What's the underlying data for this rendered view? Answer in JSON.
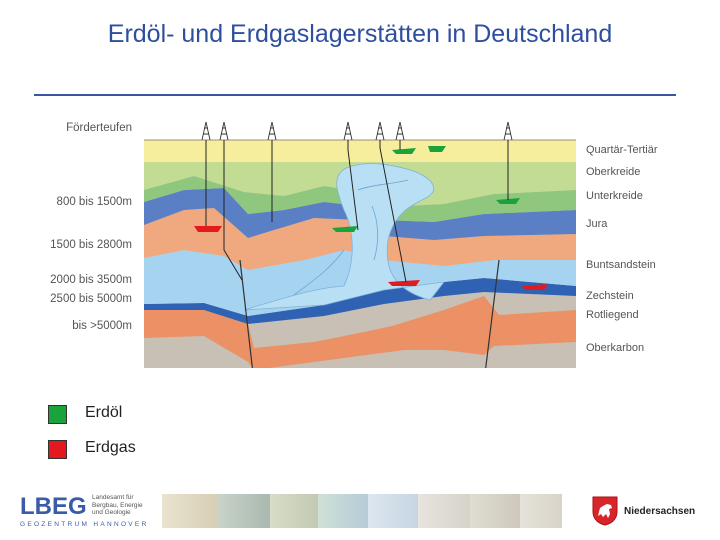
{
  "title": "Erdöl- und Erdgaslagerstätten in Deutschland",
  "diagram": {
    "depth_header": "Förderteufen",
    "depth_labels": [
      "800 bis 1500m",
      "1500 bis 2800m",
      "2000 bis 3500m",
      "2500 bis 5000m",
      "bis >5000m"
    ],
    "layer_labels": [
      "Quartär-Tertiär",
      "Oberkreide",
      "Unterkreide",
      "Jura",
      "Buntsandstein",
      "Zechstein",
      "Rotliegend",
      "Oberkarbon"
    ]
  },
  "legend": [
    {
      "label": "Erdöl",
      "color": "#1aa33a"
    },
    {
      "label": "Erdgas",
      "color": "#e3191e"
    }
  ],
  "footer": {
    "lbeg_logo": "LBEG",
    "lbeg_text_1": "Landesamt für",
    "lbeg_text_2": "Bergbau, Energie",
    "lbeg_text_3": "und Geologie",
    "geozentrum": "GEOZENTRUM HANNOVER",
    "niedersachsen": "Niedersachsen"
  },
  "colors": {
    "title": "#2d4f9e",
    "quartaer": "#f6ee9c",
    "oberkreide": "#c3dc93",
    "unterkreide": "#8fc77e",
    "jura": "#5b7fc4",
    "trias": "#f0a97f",
    "buntsandstein": "#a6d3ef",
    "zechstein": "#2f62b3",
    "rotliegend": "#eb9165",
    "oberkarbon": "#c8c0b4"
  }
}
